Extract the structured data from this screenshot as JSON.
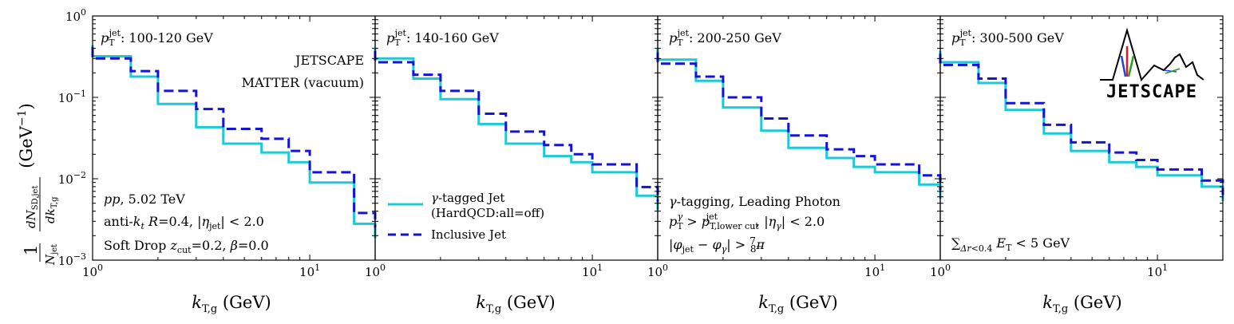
{
  "figure": {
    "ylabel": "1/N_jet dN_SD,jet/dk_T,g (GeV^-1)",
    "xlabel": "k_T,g (GeV)",
    "logo_text": "JETSCAPE",
    "colors": {
      "gamma_tagged": "#1ec8d4",
      "inclusive": "#1414d2"
    },
    "annotations": {
      "collab_line1": "JETSCAPE",
      "collab_line2": "MATTER (vacuum)",
      "sys_line1": "pp, 5.02 TeV",
      "sys_line2": "anti-k_t R=0.4, |η_jet| < 2.0",
      "sys_line3": "Soft Drop z_cut=0.2, β=0.0",
      "tag_line1": "γ-tagging, Leading Photon",
      "tag_line2": "p_T^γ > p_T,lower cut^jet, |η_γ| < 2.0",
      "tag_line3": "|φ_jet − φ_γ| > 7/8 π",
      "iso_line": "∑_{Δr<0.4} E_T < 5 GeV"
    },
    "legend": {
      "gamma_line1": "γ-tagged Jet",
      "gamma_line2": "(HardQCD:all=off)",
      "inclusive": "Inclusive Jet"
    }
  },
  "chart_data": [
    {
      "type": "line",
      "panel_label": "p_T^jet: 100-120 GeV",
      "xlim": [
        1,
        20
      ],
      "ylim": [
        0.001,
        1
      ],
      "xscale": "log",
      "yscale": "log",
      "bin_edges": [
        1.0,
        1.5,
        2.0,
        3.0,
        4.0,
        6.0,
        8.0,
        10.0,
        16.0,
        20.0
      ],
      "series": [
        {
          "name": "γ-tagged Jet (HardQCD:all=off)",
          "values": [
            0.32,
            0.18,
            0.083,
            0.043,
            0.027,
            0.021,
            0.016,
            0.009,
            0.0028
          ]
        },
        {
          "name": "Inclusive Jet",
          "values": [
            0.3,
            0.21,
            0.12,
            0.072,
            0.041,
            0.031,
            0.022,
            0.012,
            0.0038
          ]
        }
      ]
    },
    {
      "type": "line",
      "panel_label": "p_T^jet: 140-160 GeV",
      "xlim": [
        1,
        20
      ],
      "ylim": [
        0.001,
        1
      ],
      "xscale": "log",
      "yscale": "log",
      "bin_edges": [
        1.0,
        1.5,
        2.0,
        3.0,
        4.0,
        6.0,
        8.0,
        10.0,
        16.0,
        20.0
      ],
      "series": [
        {
          "name": "γ-tagged Jet (HardQCD:all=off)",
          "values": [
            0.3,
            0.17,
            0.095,
            0.047,
            0.027,
            0.019,
            0.016,
            0.012,
            0.0062
          ]
        },
        {
          "name": "Inclusive Jet",
          "values": [
            0.27,
            0.19,
            0.12,
            0.063,
            0.038,
            0.026,
            0.02,
            0.015,
            0.0079
          ]
        }
      ]
    },
    {
      "type": "line",
      "panel_label": "p_T^jet: 200-250 GeV",
      "xlim": [
        1,
        20
      ],
      "ylim": [
        0.001,
        1
      ],
      "xscale": "log",
      "yscale": "log",
      "bin_edges": [
        1.0,
        1.5,
        2.0,
        3.0,
        4.0,
        6.0,
        8.0,
        10.0,
        16.0,
        20.0
      ],
      "series": [
        {
          "name": "γ-tagged Jet (HardQCD:all=off)",
          "values": [
            0.29,
            0.16,
            0.075,
            0.039,
            0.024,
            0.018,
            0.014,
            0.012,
            0.0085
          ]
        },
        {
          "name": "Inclusive Jet",
          "values": [
            0.26,
            0.18,
            0.1,
            0.055,
            0.034,
            0.023,
            0.019,
            0.015,
            0.011
          ]
        }
      ]
    },
    {
      "type": "line",
      "panel_label": "p_T^jet: 300-500 GeV",
      "xlim": [
        1,
        20
      ],
      "ylim": [
        0.001,
        1
      ],
      "xscale": "log",
      "yscale": "log",
      "bin_edges": [
        1.0,
        1.5,
        2.0,
        3.0,
        4.0,
        6.0,
        8.0,
        10.0,
        16.0,
        20.0
      ],
      "series": [
        {
          "name": "γ-tagged Jet (HardQCD:all=off)",
          "values": [
            0.27,
            0.15,
            0.07,
            0.036,
            0.022,
            0.016,
            0.014,
            0.011,
            0.008
          ]
        },
        {
          "name": "Inclusive Jet",
          "values": [
            0.25,
            0.17,
            0.085,
            0.046,
            0.028,
            0.021,
            0.017,
            0.013,
            0.0095
          ]
        }
      ]
    }
  ]
}
